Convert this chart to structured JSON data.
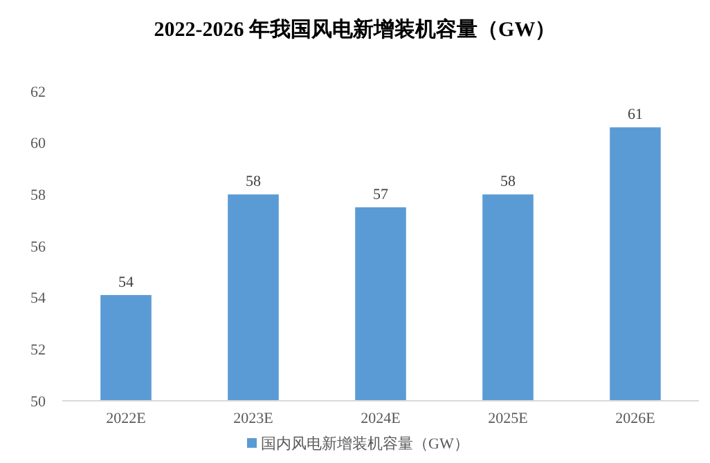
{
  "chart_data": {
    "type": "bar",
    "title": "2022-2026 年我国风电新增装机容量（GW）",
    "categories": [
      "2022E",
      "2023E",
      "2024E",
      "2025E",
      "2026E"
    ],
    "series": [
      {
        "name": "国内风电新增装机容量（GW）",
        "color": "#5b9bd5",
        "values": [
          54.1,
          58,
          57.5,
          58,
          60.6
        ],
        "value_labels": [
          "54",
          "58",
          "57",
          "58",
          "61"
        ]
      }
    ],
    "ylim": [
      50,
      62
    ],
    "yticks": [
      50,
      52,
      54,
      56,
      58,
      60,
      62
    ],
    "grid": false,
    "legend": "bottom"
  }
}
